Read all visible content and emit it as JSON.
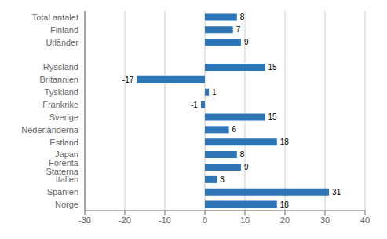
{
  "chart_data": {
    "type": "bar",
    "orientation": "horizontal",
    "categories": [
      "Norge",
      "Spanien",
      "Italien",
      "Förenta Staterna",
      "Japan",
      "Estland",
      "Nederländerna",
      "Sverige",
      "Frankrike",
      "Tyskland",
      "Britannien",
      "Ryssland",
      null,
      "Utländer",
      "Finland",
      "Total antalet"
    ],
    "values": [
      18,
      31,
      3,
      9,
      8,
      18,
      6,
      15,
      -1,
      1,
      -17,
      15,
      null,
      9,
      7,
      8
    ],
    "color": "#2E75B6",
    "xlim": [
      -30,
      40
    ],
    "xticks": [
      -30,
      -20,
      -10,
      0,
      10,
      20,
      30,
      40
    ],
    "grid": true,
    "data_labels": true
  }
}
